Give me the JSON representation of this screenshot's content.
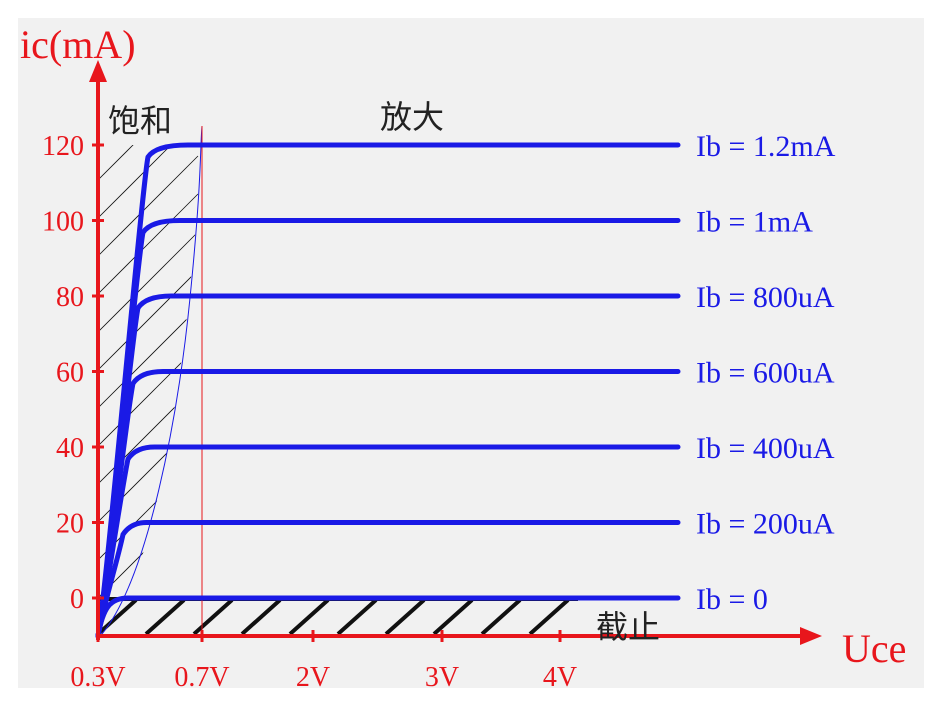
{
  "chart_data": {
    "type": "line",
    "title": "",
    "ylabel": "ic(mA)",
    "xlabel": "Uce",
    "y_ticks": [
      0,
      20,
      40,
      60,
      80,
      100,
      120
    ],
    "x_ticks": [
      "0.3V",
      "0.7V",
      "2V",
      "3V",
      "4V"
    ],
    "regions": {
      "saturation": "饱和",
      "amplification": "放大",
      "cutoff": "截止"
    },
    "series": [
      {
        "name": "Ib = 1.2mA",
        "plateau": 120
      },
      {
        "name": "Ib = 1mA",
        "plateau": 100
      },
      {
        "name": "Ib = 800uA",
        "plateau": 80
      },
      {
        "name": "Ib = 600uA",
        "plateau": 60
      },
      {
        "name": "Ib = 400uA",
        "plateau": 40
      },
      {
        "name": "Ib = 200uA",
        "plateau": 20
      },
      {
        "name": "Ib = 0",
        "plateau": 0
      }
    ],
    "colors": {
      "axis": "#e8161c",
      "curve": "#1a1ae6",
      "hatch": "#111111"
    }
  }
}
